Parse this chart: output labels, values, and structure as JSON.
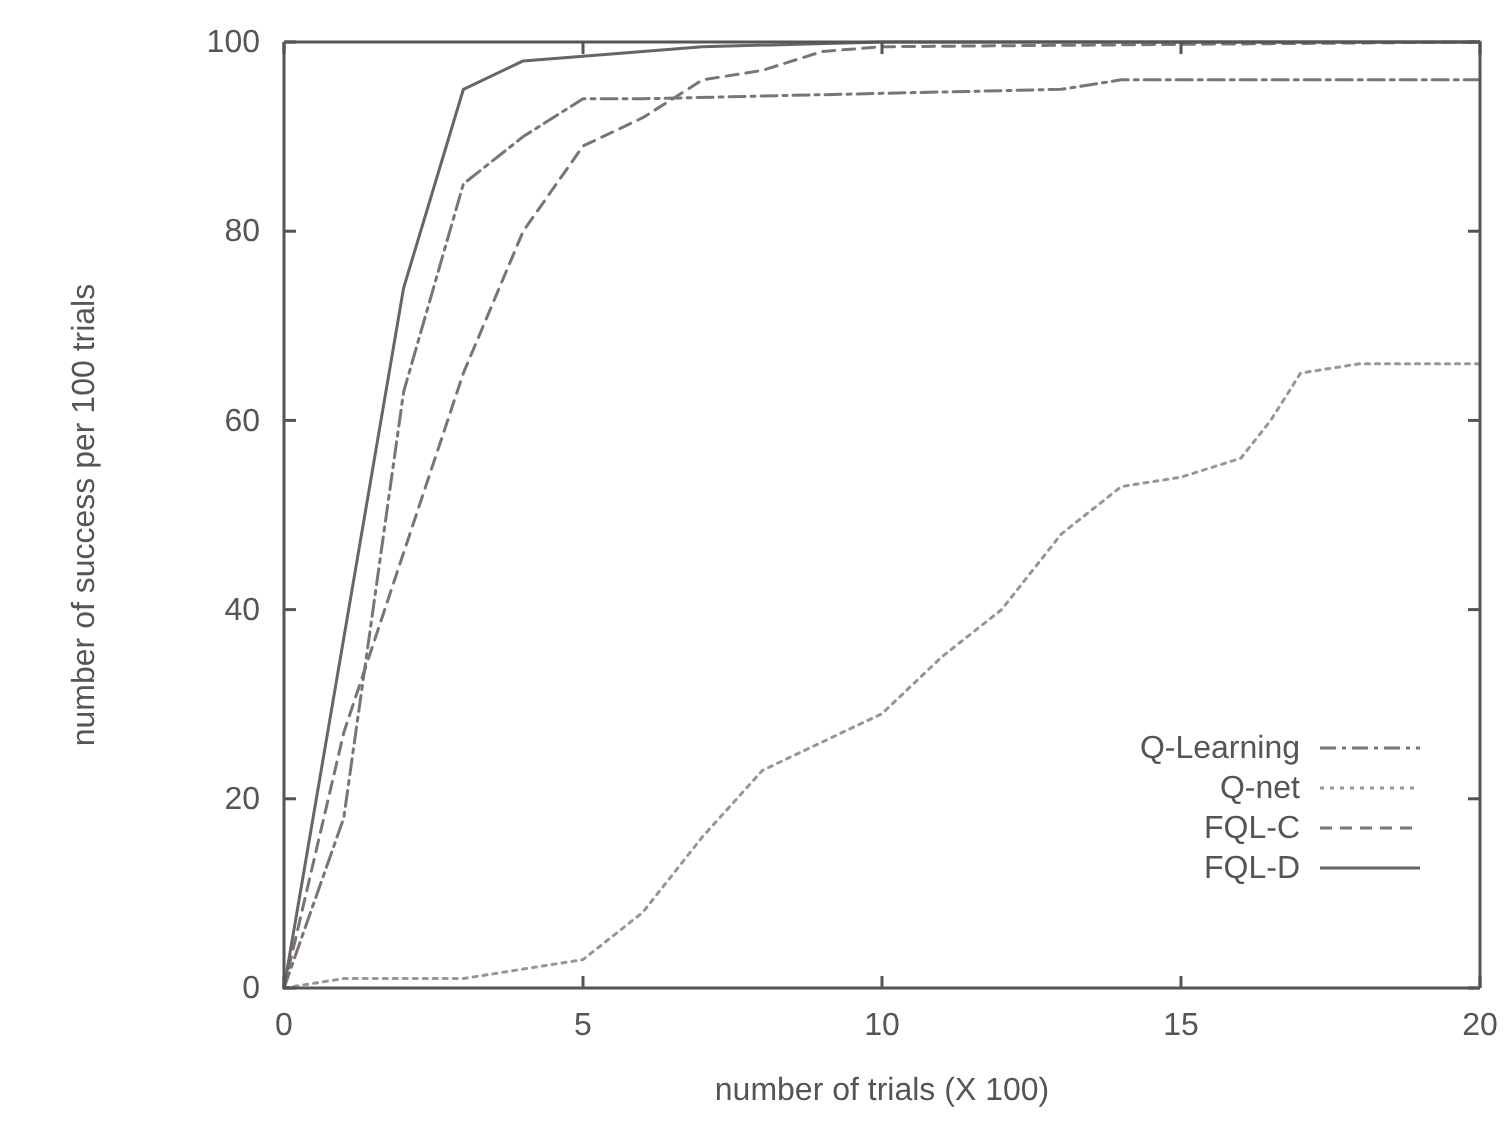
{
  "chart_data": {
    "type": "line",
    "xlabel": "number of trials (X 100)",
    "ylabel": "number of success per 100 trials",
    "xlim": [
      0,
      20
    ],
    "ylim": [
      0,
      100
    ],
    "xticks": [
      0,
      5,
      10,
      15,
      20
    ],
    "yticks": [
      0,
      20,
      40,
      60,
      80,
      100
    ],
    "grid": false,
    "legend": "bottom right",
    "marker": "none",
    "series": [
      {
        "name": "Q-Learning",
        "color": "#7a7478",
        "line_style": "dashdot",
        "x": [
          0,
          1,
          2,
          3,
          4,
          5,
          6,
          13,
          14,
          20
        ],
        "values": [
          0,
          18,
          63,
          85,
          90,
          94,
          94,
          95,
          96,
          96
        ]
      },
      {
        "name": "Q-net",
        "color": "#9a9498",
        "line_style": "dotted",
        "x": [
          0,
          1,
          2,
          3,
          4,
          5,
          6,
          7,
          8,
          9,
          10,
          11,
          12,
          13,
          14,
          15,
          16,
          16.5,
          17,
          18,
          20
        ],
        "values": [
          0,
          1,
          1,
          1,
          2,
          3,
          8,
          16,
          23,
          26,
          29,
          35,
          40,
          48,
          53,
          54,
          56,
          60,
          65,
          66,
          66
        ]
      },
      {
        "name": "FQL-C",
        "color": "#7a7478",
        "line_style": "dashed",
        "x": [
          0,
          1,
          2,
          3,
          4,
          5,
          6,
          7,
          8,
          9,
          10,
          20
        ],
        "values": [
          0,
          27,
          46,
          65,
          80,
          89,
          92,
          96,
          97,
          99,
          99.5,
          100
        ]
      },
      {
        "name": "FQL-D",
        "color": "#6a6468",
        "line_style": "solid",
        "x": [
          0,
          2,
          3,
          4,
          7,
          10,
          20
        ],
        "values": [
          0,
          74,
          95,
          98,
          99.5,
          100,
          100
        ]
      }
    ]
  }
}
